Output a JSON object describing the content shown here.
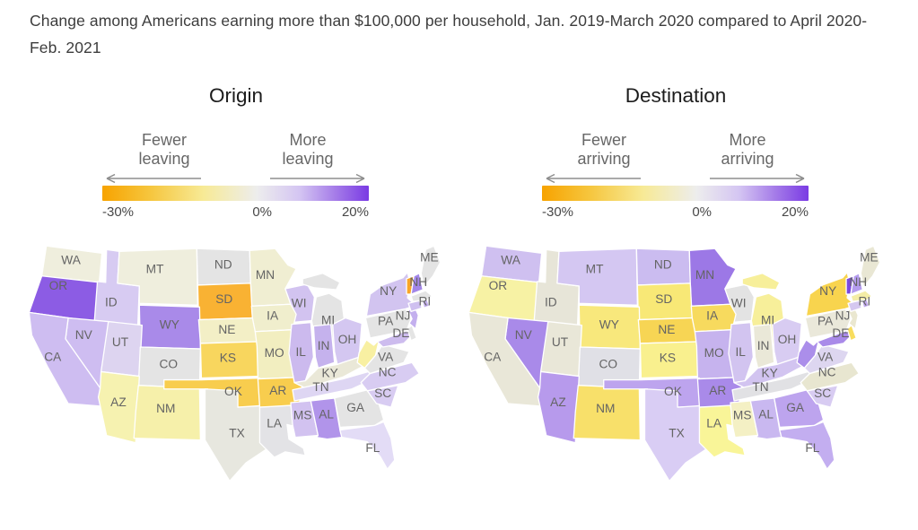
{
  "page": {
    "title": "Change among Americans earning more than $100,000 per household, Jan. 2019-March 2020 compared to April 2020-Feb. 2021"
  },
  "chart_data": {
    "type": "choropleth",
    "title": "Change among Americans earning more than $100,000 per household, Jan. 2019-March 2020 compared to April 2020-Feb. 2021",
    "scale": {
      "min": -30,
      "max": 20,
      "unit": "%",
      "ticks": [
        "-30%",
        "0%",
        "20%"
      ],
      "gradient_stops": [
        {
          "color": "#f7a300",
          "pos": 0
        },
        {
          "color": "#f6c63e",
          "pos": 18
        },
        {
          "color": "#f7ea96",
          "pos": 38
        },
        {
          "color": "#ededed",
          "pos": 58
        },
        {
          "color": "#d4c5f2",
          "pos": 74
        },
        {
          "color": "#a379e8",
          "pos": 88
        },
        {
          "color": "#7a3be4",
          "pos": 100
        }
      ]
    },
    "state_labels": {
      "WA": "WA",
      "OR": "OR",
      "CA": "CA",
      "NV": "NV",
      "ID": "ID",
      "MT": "MT",
      "WY": "WY",
      "UT": "UT",
      "CO": "CO",
      "AZ": "AZ",
      "NM": "NM",
      "ND": "ND",
      "SD": "SD",
      "NE": "NE",
      "KS": "KS",
      "OK": "OK",
      "TX": "TX",
      "MN": "MN",
      "IA": "IA",
      "MO": "MO",
      "AR": "AR",
      "LA": "LA",
      "WI": "WI",
      "MI": "MI",
      "IL": "IL",
      "IN": "IN",
      "OH": "OH",
      "KY": "KY",
      "TN": "TN",
      "MS": "MS",
      "AL": "AL",
      "GA": "GA",
      "SC": "SC",
      "NC": "NC",
      "VA": "VA",
      "FL": "FL",
      "WV": "",
      "MD": "",
      "PA": "PA",
      "DE": "DE",
      "NJ": "NJ",
      "NY": "NY",
      "CT": "",
      "RI": "RI",
      "MA": "",
      "VT": "",
      "NH": "NH",
      "ME": "ME"
    },
    "maps": [
      {
        "id": "origin",
        "heading": "Origin",
        "legend_low": [
          "Fewer",
          "leaving"
        ],
        "legend_high": [
          "More",
          "leaving"
        ],
        "fills": {
          "WA": "#efeedd",
          "OR": "#8c5ce4",
          "CA": "#cebdf1",
          "NV": "#cebdf1",
          "ID": "#d7cbf2",
          "MT": "#efeedd",
          "WY": "#a98ae9",
          "UT": "#ddd4f0",
          "CO": "#e4e4e4",
          "AZ": "#f6f2b0",
          "NM": "#f6f0aa",
          "ND": "#e4e4e4",
          "SD": "#f9b233",
          "NE": "#f3efc6",
          "KS": "#f8d65e",
          "OK": "#f8cd4e",
          "TX": "#e7e7df",
          "MN": "#f0eed2",
          "IA": "#f0eecd",
          "MO": "#f2eec0",
          "WI": "#d2c3f0",
          "MI": "#e4e4e4",
          "IL": "#ccbaee",
          "IN": "#c5b2ed",
          "OH": "#d4c7f1",
          "KY": "#eae8d8",
          "TN": "#ded6f3",
          "AR": "#f8cd4e",
          "LA": "#e3e3e6",
          "MS": "#d2c2f0",
          "AL": "#b194ea",
          "GA": "#e4e4e4",
          "SC": "#d8ccf2",
          "NC": "#d8ccf2",
          "VA": "#e4e4e4",
          "FL": "#e3dcf6",
          "WV": "#f8f0a2",
          "MD": "#cdbcee",
          "PA": "#e4e4e4",
          "DE": "#e4e4e4",
          "NJ": "#c3afee",
          "NY": "#d2c4f0",
          "CT": "#cfc0f0",
          "RI": "#c3afee",
          "MA": "#e4e4e4",
          "VT": "#f9a526",
          "NH": "#a286e8",
          "ME": "#e4e4e4"
        }
      },
      {
        "id": "destination",
        "heading": "Destination",
        "legend_low": [
          "Fewer",
          "arriving"
        ],
        "legend_high": [
          "More",
          "arriving"
        ],
        "fills": {
          "WA": "#cfc0f0",
          "OR": "#f7f2a4",
          "CA": "#e9e7d8",
          "NV": "#a98ae9",
          "ID": "#e7e5d8",
          "MT": "#d4c7f2",
          "WY": "#f8e87c",
          "UT": "#e9e7d8",
          "CO": "#e0e0e6",
          "AZ": "#b79aec",
          "NM": "#f8e06a",
          "ND": "#cbbcf0",
          "SD": "#f8e876",
          "NE": "#f7d554",
          "KS": "#f9f08e",
          "OK": "#bda4ee",
          "TX": "#d9cdf4",
          "MN": "#9c78e6",
          "IA": "#f7da5e",
          "MO": "#c6b3ee",
          "WI": "#e3e3e3",
          "MI": "#f7ef9a",
          "IL": "#d2c4f0",
          "IN": "#eae8d8",
          "OH": "#d8ccf2",
          "KY": "#d2c4f0",
          "TN": "#e1e1e4",
          "AR": "#a98ae9",
          "LA": "#f9f598",
          "MS": "#f4f0c4",
          "AL": "#c9b8f0",
          "GA": "#bda4ee",
          "SC": "#d8ccf2",
          "NC": "#e8e6d0",
          "VA": "#ddd6f0",
          "FL": "#c3aef0",
          "WV": "#ab8eea",
          "MD": "#a98ae9",
          "PA": "#eae8da",
          "DE": "#f8dd5e",
          "NJ": "#eae7d0",
          "NY": "#f8d44e",
          "CT": "#d5c8f0",
          "RI": "#c0a8ee",
          "MA": "#f4eda6",
          "VT": "#7a49e0",
          "NH": "#b49cee",
          "ME": "#e9e7d4"
        }
      }
    ]
  }
}
